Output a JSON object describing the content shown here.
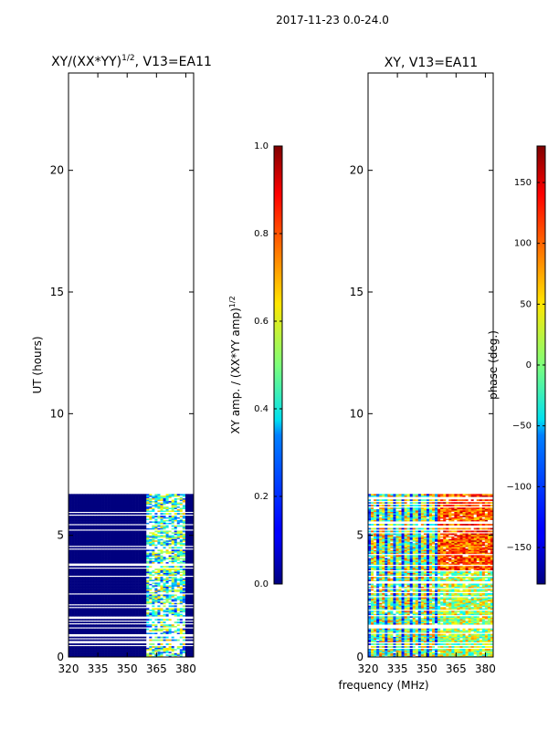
{
  "figure": {
    "suptitle": "2017-11-23 0.0-24.0",
    "xlabel_shared": "frequency (MHz)"
  },
  "colors": {
    "background": "#ffffff",
    "masked": "#00007f",
    "frame": "#000000"
  },
  "chart_data": [
    {
      "type": "heatmap",
      "title_prefix": "XY/(XX*YY)",
      "title_exp": "1/2",
      "title_suffix": ", V13=EA11",
      "ylabel": "UT (hours)",
      "xlim": [
        320,
        384
      ],
      "ylim": [
        0,
        24
      ],
      "xticks": [
        320,
        335,
        350,
        365,
        380
      ],
      "yticks": [
        0,
        5,
        10,
        15,
        20
      ],
      "data_ut_range": [
        0,
        6.7
      ],
      "active_freq_ranges": [
        [
          360,
          380
        ]
      ],
      "colorbar": {
        "label_prefix": "XY amp. / (XX*YY amp)",
        "label_exp": "1/2",
        "range": [
          0.0,
          1.0
        ],
        "ticks": [
          "0.0",
          "0.2",
          "0.4",
          "0.6",
          "0.8",
          "1.0"
        ],
        "colormap": "jet"
      }
    },
    {
      "type": "heatmap",
      "title": "XY, V13=EA11",
      "xlim": [
        320,
        384
      ],
      "ylim": [
        0,
        24
      ],
      "xticks": [
        320,
        335,
        350,
        365,
        380
      ],
      "yticks": [
        0,
        5,
        10,
        15,
        20
      ],
      "data_ut_range": [
        0,
        6.7
      ],
      "colorbar": {
        "label": "phase (deg.)",
        "range": [
          -180,
          180
        ],
        "ticks": [
          "−150",
          "−100",
          "−50",
          "0",
          "50",
          "100",
          "150"
        ],
        "colormap": "jet"
      }
    }
  ]
}
